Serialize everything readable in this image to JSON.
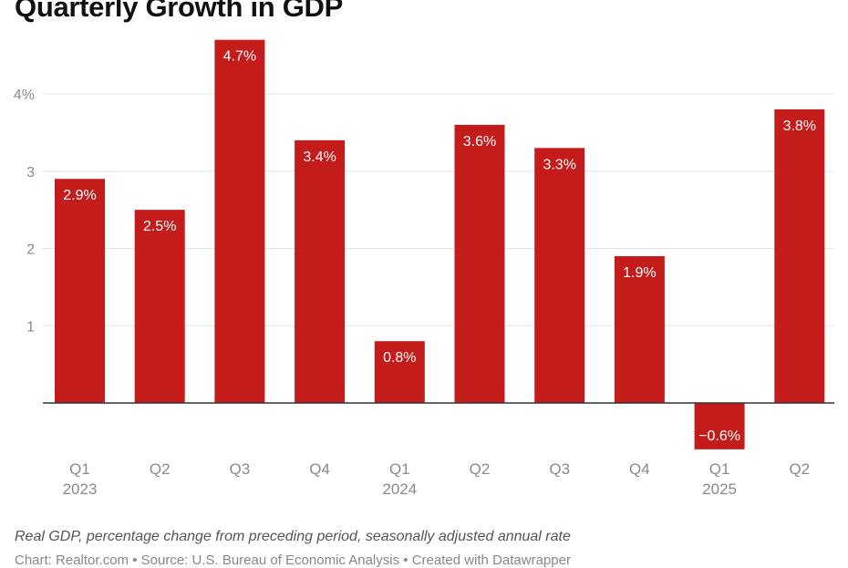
{
  "chart_data": {
    "type": "bar",
    "title": "Quarterly Growth in GDP",
    "subtitle": "",
    "categories": [
      "Q1 2023",
      "Q2 2023",
      "Q3 2023",
      "Q4 2023",
      "Q1 2024",
      "Q2 2024",
      "Q3 2024",
      "Q4 2024",
      "Q1 2025",
      "Q2 2025"
    ],
    "tick_labels": [
      {
        "line1": "Q1",
        "line2": "2023"
      },
      {
        "line1": "Q2",
        "line2": ""
      },
      {
        "line1": "Q3",
        "line2": ""
      },
      {
        "line1": "Q4",
        "line2": ""
      },
      {
        "line1": "Q1",
        "line2": "2024"
      },
      {
        "line1": "Q2",
        "line2": ""
      },
      {
        "line1": "Q3",
        "line2": ""
      },
      {
        "line1": "Q4",
        "line2": ""
      },
      {
        "line1": "Q1",
        "line2": "2025"
      },
      {
        "line1": "Q2",
        "line2": ""
      }
    ],
    "values": [
      2.9,
      2.5,
      4.7,
      3.4,
      0.8,
      3.6,
      3.3,
      1.9,
      -0.6,
      3.8
    ],
    "data_labels": [
      "2.9%",
      "2.5%",
      "4.7%",
      "3.4%",
      "0.8%",
      "3.6%",
      "3.3%",
      "1.9%",
      "−0.6%",
      "3.8%"
    ],
    "y_ticks": [
      1,
      2,
      3,
      4
    ],
    "y_tick_labels": [
      "1",
      "2",
      "3",
      "4%"
    ],
    "ylim": [
      -0.6,
      4.7
    ],
    "xlabel": "",
    "ylabel": "",
    "grid": true,
    "legend": "none",
    "bar_color": "#c41b1b",
    "caption": "Real GDP, percentage change from preceding period, seasonally adjusted annual rate",
    "credit": "Chart: Realtor.com • Source: U.S. Bureau of Economic Analysis • Created with Datawrapper"
  }
}
